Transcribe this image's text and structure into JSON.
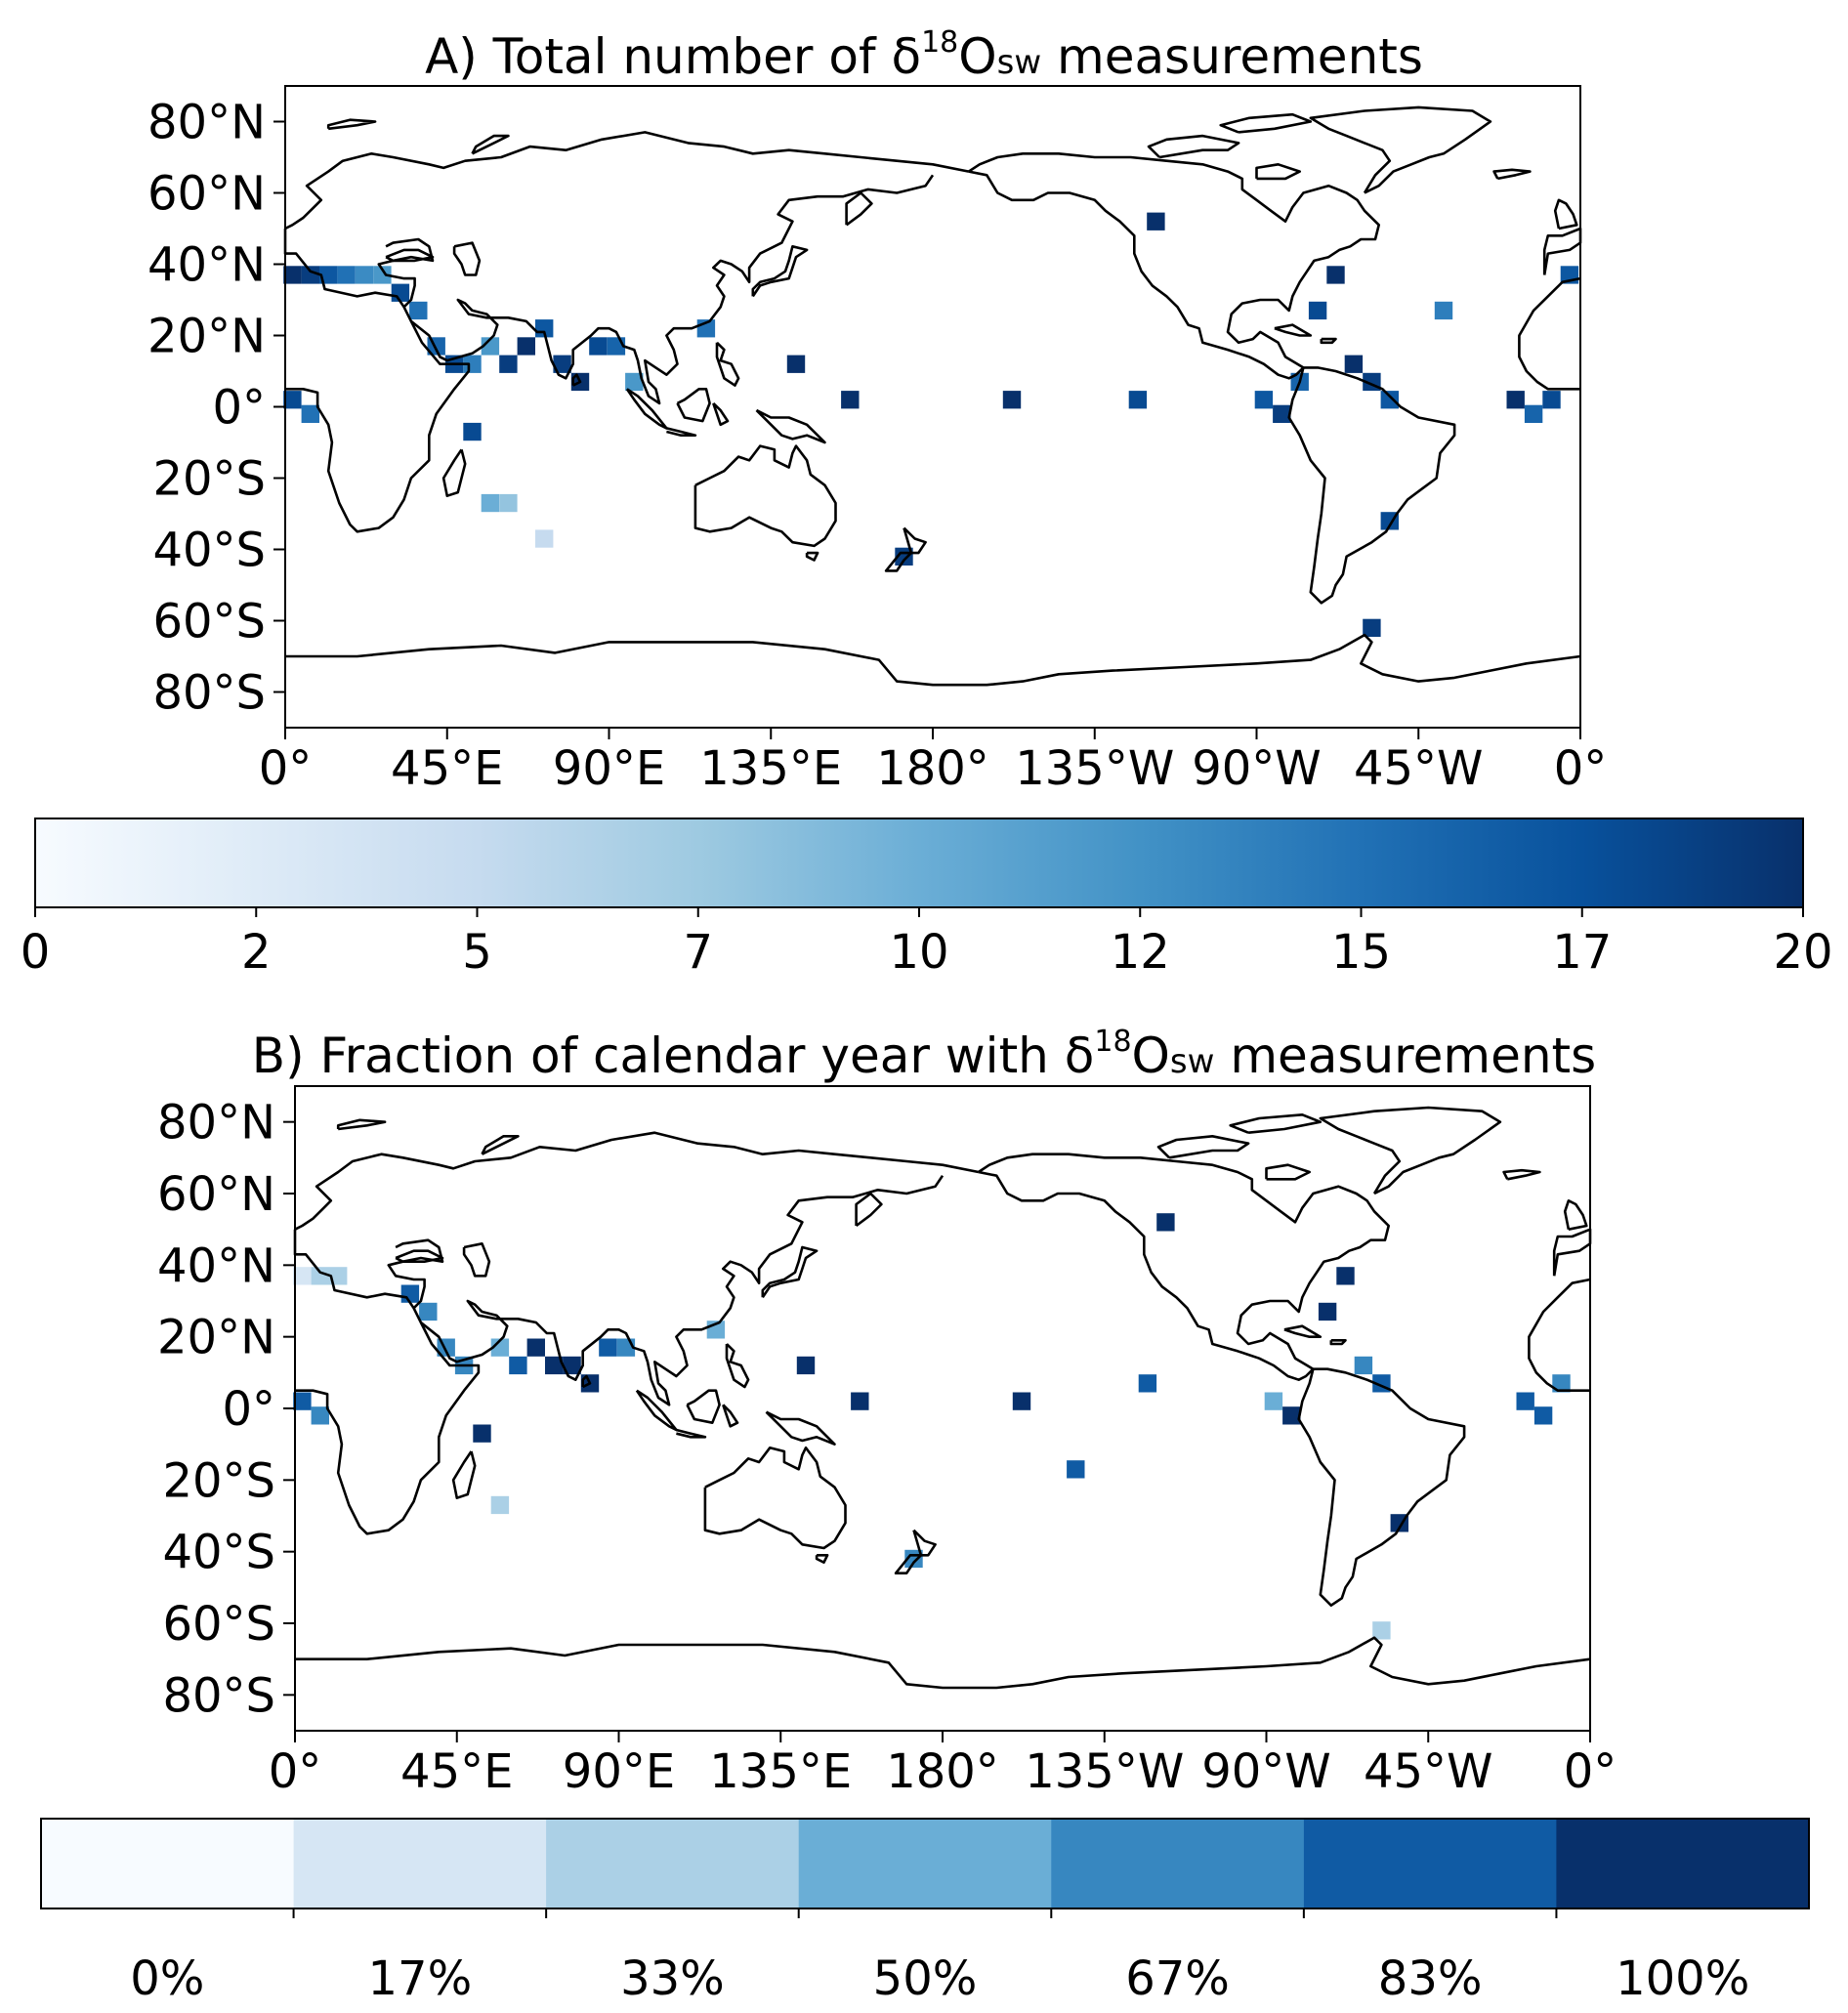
{
  "panel_a": {
    "title_prefix": "A) Total number of δ",
    "title_sup": "18",
    "title_main": "O",
    "title_sub": "sw",
    "title_suffix": " measurements",
    "y_ticks": [
      "80°N",
      "60°N",
      "40°N",
      "20°N",
      "0°",
      "20°S",
      "40°S",
      "60°S",
      "80°S"
    ],
    "x_ticks": [
      "0°",
      "45°E",
      "90°E",
      "135°E",
      "180°",
      "135°W",
      "90°W",
      "45°W",
      "0°"
    ],
    "colorbar": {
      "type": "continuous",
      "ticks": [
        "0",
        "2",
        "5",
        "7",
        "10",
        "12",
        "15",
        "17",
        "20"
      ],
      "range": [
        0,
        20
      ],
      "cmap": [
        "#f7fbff",
        "#deebf7",
        "#c6dbef",
        "#9ecae1",
        "#6baed6",
        "#4292c6",
        "#2171b5",
        "#08519c",
        "#08306b"
      ]
    }
  },
  "panel_b": {
    "title_prefix": "B) Fraction of calendar year with δ",
    "title_sup": "18",
    "title_main": "O",
    "title_sub": "sw",
    "title_suffix": " measurements",
    "y_ticks": [
      "80°N",
      "60°N",
      "40°N",
      "20°N",
      "0°",
      "20°S",
      "40°S",
      "60°S",
      "80°S"
    ],
    "x_ticks": [
      "0°",
      "45°E",
      "90°E",
      "135°E",
      "180°",
      "135°W",
      "90°W",
      "45°W",
      "0°"
    ],
    "colorbar": {
      "type": "discrete",
      "ticks": [
        "0%",
        "17%",
        "33%",
        "50%",
        "67%",
        "83%",
        "100%"
      ],
      "bins": [
        "#f7fbff",
        "#d6e6f4",
        "#abd0e6",
        "#6aaed6",
        "#3787c0",
        "#105ba4",
        "#08306b"
      ]
    }
  },
  "chart_data": [
    {
      "type": "heatmap",
      "title": "A) Total number of δ18Osw measurements",
      "xlim_deg_east": [
        0,
        360
      ],
      "ylim_deg_north": [
        -90,
        90
      ],
      "grid_resolution_deg": 5,
      "value_range": [
        0,
        20
      ],
      "cells_note_lon_lat_value": [
        [
          2,
          37,
          20
        ],
        [
          7,
          37,
          19
        ],
        [
          12,
          37,
          17
        ],
        [
          17,
          37,
          15
        ],
        [
          22,
          37,
          13
        ],
        [
          27,
          37,
          12
        ],
        [
          32,
          32,
          18
        ],
        [
          37,
          27,
          15
        ],
        [
          42,
          17,
          16
        ],
        [
          47,
          12,
          18
        ],
        [
          52,
          12,
          14
        ],
        [
          57,
          17,
          12
        ],
        [
          62,
          12,
          19
        ],
        [
          67,
          17,
          20
        ],
        [
          72,
          22,
          17
        ],
        [
          77,
          12,
          19
        ],
        [
          82,
          7,
          20
        ],
        [
          87,
          17,
          18
        ],
        [
          92,
          17,
          16
        ],
        [
          97,
          7,
          12
        ],
        [
          52,
          -7,
          18
        ],
        [
          57,
          -27,
          10
        ],
        [
          62,
          -27,
          8
        ],
        [
          72,
          -37,
          5
        ],
        [
          2,
          2,
          18
        ],
        [
          7,
          -2,
          15
        ],
        [
          117,
          22,
          15
        ],
        [
          142,
          12,
          20
        ],
        [
          157,
          2,
          20
        ],
        [
          172,
          -42,
          19
        ],
        [
          202,
          2,
          20
        ],
        [
          237,
          2,
          18
        ],
        [
          242,
          52,
          20
        ],
        [
          272,
          2,
          17
        ],
        [
          277,
          -2,
          19
        ],
        [
          282,
          7,
          16
        ],
        [
          297,
          12,
          20
        ],
        [
          302,
          7,
          19
        ],
        [
          307,
          2,
          17
        ],
        [
          302,
          -62,
          19
        ],
        [
          307,
          -32,
          18
        ],
        [
          342,
          2,
          20
        ],
        [
          347,
          -2,
          16
        ],
        [
          352,
          2,
          18
        ],
        [
          357,
          37,
          17
        ],
        [
          292,
          37,
          20
        ],
        [
          287,
          27,
          18
        ],
        [
          322,
          27,
          14
        ]
      ]
    },
    {
      "type": "heatmap",
      "title": "B) Fraction of calendar year with δ18Osw measurements",
      "xlim_deg_east": [
        0,
        360
      ],
      "ylim_deg_north": [
        -90,
        90
      ],
      "grid_resolution_deg": 5,
      "value_range_percent": [
        0,
        100
      ],
      "cells_note_lon_lat_value": [
        [
          2,
          37,
          25
        ],
        [
          7,
          37,
          30
        ],
        [
          12,
          37,
          33
        ],
        [
          32,
          32,
          75
        ],
        [
          37,
          27,
          60
        ],
        [
          42,
          17,
          70
        ],
        [
          47,
          12,
          65
        ],
        [
          57,
          17,
          50
        ],
        [
          62,
          12,
          83
        ],
        [
          67,
          17,
          90
        ],
        [
          72,
          12,
          100
        ],
        [
          77,
          12,
          92
        ],
        [
          82,
          7,
          100
        ],
        [
          87,
          17,
          75
        ],
        [
          92,
          17,
          70
        ],
        [
          52,
          -7,
          100
        ],
        [
          57,
          -27,
          35
        ],
        [
          2,
          2,
          75
        ],
        [
          7,
          -2,
          60
        ],
        [
          117,
          22,
          50
        ],
        [
          142,
          12,
          100
        ],
        [
          157,
          2,
          100
        ],
        [
          172,
          -42,
          60
        ],
        [
          202,
          2,
          100
        ],
        [
          217,
          -17,
          83
        ],
        [
          237,
          7,
          80
        ],
        [
          242,
          52,
          100
        ],
        [
          272,
          2,
          45
        ],
        [
          277,
          -2,
          100
        ],
        [
          292,
          37,
          100
        ],
        [
          287,
          27,
          92
        ],
        [
          297,
          12,
          60
        ],
        [
          302,
          7,
          83
        ],
        [
          307,
          -32,
          100
        ],
        [
          302,
          -62,
          40
        ],
        [
          342,
          2,
          83
        ],
        [
          347,
          -2,
          75
        ],
        [
          352,
          7,
          60
        ]
      ]
    }
  ]
}
